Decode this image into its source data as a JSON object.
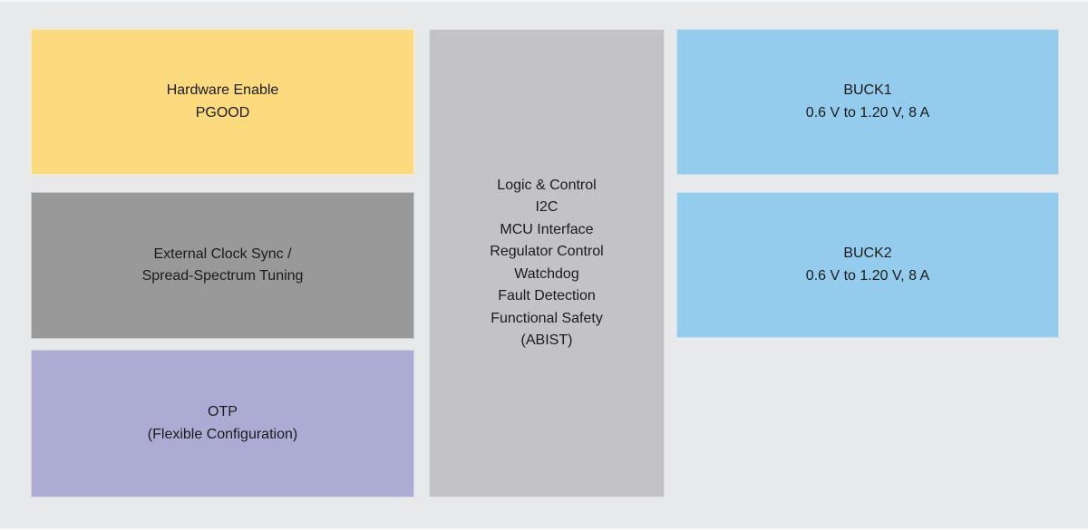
{
  "colors": {
    "background": "#e8e9ea",
    "yellow": "#fbdb7e",
    "dark_gray": "#99999a",
    "purple": "#ababd4",
    "light_gray": "#c3c3c5",
    "blue": "#93ccec",
    "text": "#1b1b1b"
  },
  "blocks": {
    "hardware_enable": {
      "lines": [
        "Hardware Enable",
        "PGOOD"
      ],
      "color": "#fbdb7e"
    },
    "clock_sync": {
      "lines": [
        "External Clock Sync /",
        "Spread-Spectrum Tuning"
      ],
      "color": "#99999a"
    },
    "otp": {
      "lines": [
        "OTP",
        "(Flexible Configuration)"
      ],
      "color": "#ababd4"
    },
    "logic_control": {
      "lines": [
        "Logic & Control",
        "I2C",
        "MCU Interface",
        "Regulator Control",
        "Watchdog",
        "Fault Detection",
        "Functional Safety",
        "(ABIST)"
      ],
      "color": "#c3c3c5"
    },
    "buck1": {
      "lines": [
        "BUCK1",
        "0.6 V to 1.20 V, 8 A"
      ],
      "color": "#93ccec"
    },
    "buck2": {
      "lines": [
        "BUCK2",
        "0.6 V to 1.20 V, 8 A"
      ],
      "color": "#93ccec"
    }
  }
}
